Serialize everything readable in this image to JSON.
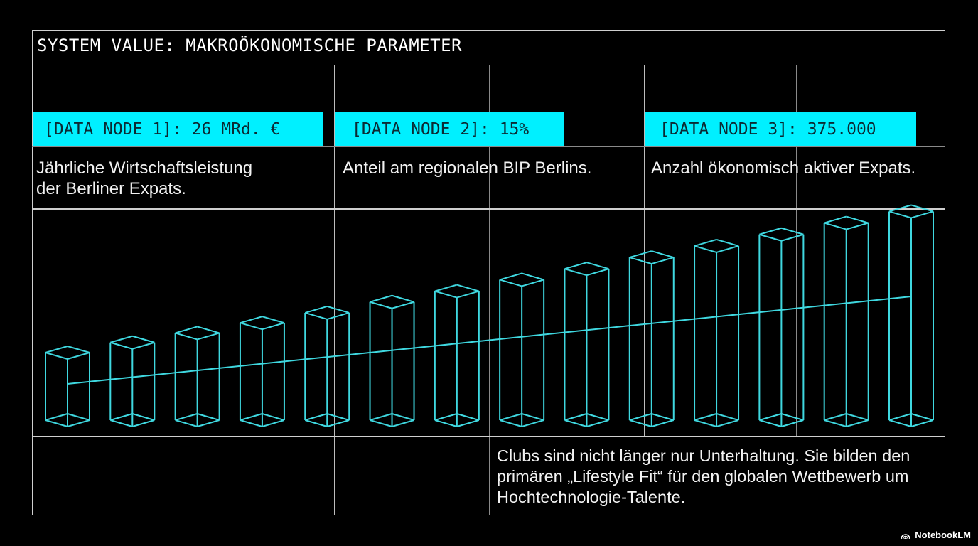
{
  "title": "SYSTEM VALUE: MAKROÖKONOMISCHE PARAMETER",
  "nodes": [
    {
      "label": "[DATA NODE 1]: 26 MRd. €",
      "description_line1": "Jährliche Wirtschaftsleistung",
      "description_line2": "der Berliner Expats."
    },
    {
      "label": "[DATA NODE 2]: 15%",
      "description_line1": "Anteil am regionalen BIP Berlins.",
      "description_line2": ""
    },
    {
      "label": "[DATA NODE 3]: 375.000",
      "description_line1": "Anzahl ökonomisch aktiver Expats.",
      "description_line2": ""
    }
  ],
  "quote": {
    "line1": "Clubs sind nicht länger nur Unterhaltung. Sie bilden den",
    "line2": "primären „Lifestyle Fit“ für den globalen Wettbewerb um",
    "line3": "Hochtechnologie-Talente."
  },
  "brand": {
    "name": "NotebookLM",
    "icon": "notebooklm-logo-icon"
  },
  "colors": {
    "accent": "#00f0ff",
    "wireframe": "#3fd8e0",
    "background": "#000000",
    "grid": "#8a8a8a",
    "node_text": "#0b2a33"
  },
  "chart_data": {
    "type": "bar",
    "style": "3D wireframe columns with linear trend line",
    "title": "",
    "xlabel": "",
    "ylabel": "",
    "categories": [
      "1",
      "2",
      "3",
      "4",
      "5",
      "6",
      "7",
      "8",
      "9",
      "10",
      "11",
      "12",
      "13",
      "14"
    ],
    "values": [
      1.0,
      1.15,
      1.29,
      1.44,
      1.59,
      1.75,
      1.91,
      2.08,
      2.24,
      2.41,
      2.58,
      2.75,
      2.92,
      3.09
    ],
    "trend_line": {
      "start": 1.0,
      "end": 2.4,
      "type": "linear"
    },
    "axes_visible": false,
    "grid": true,
    "legend": null,
    "note": "No axis ticks or labels shown; values are relative bar heights estimated from pixels (first bar = 1.0)."
  }
}
